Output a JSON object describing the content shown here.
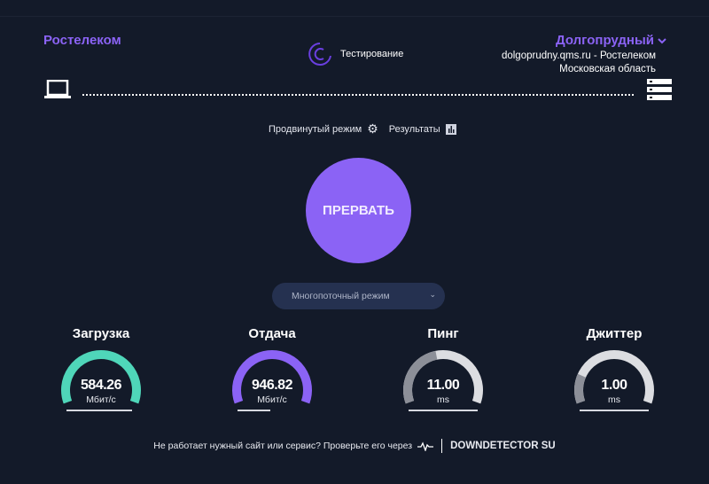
{
  "header": {
    "isp": "Ростелеком",
    "status": "Тестирование",
    "city": "Долгопрудный",
    "server": "dolgoprudny.qms.ru - Ростелеком",
    "region": "Московская область"
  },
  "links": {
    "advanced": "Продвинутый режим",
    "results": "Результаты"
  },
  "stop_button": "ПРЕРВАТЬ",
  "mode_select": {
    "value": "Многопоточный режим"
  },
  "colors": {
    "accent": "#8b63f5",
    "download": "#4fd6b9",
    "upload": "#8b63f5",
    "gauge_dark": "#8c8f98",
    "gauge_light": "#dcdde1",
    "bg": "#131a29"
  },
  "metrics": [
    {
      "title": "Загрузка",
      "value": "584.26",
      "unit": "Мбит/с",
      "fill": 1.0,
      "color": "#4fd6b9",
      "track": "#4fd6b9",
      "progress": 0.95
    },
    {
      "title": "Отдача",
      "value": "946.82",
      "unit": "Мбит/с",
      "fill": 1.0,
      "color": "#8b63f5",
      "track": "#8b63f5",
      "progress": 0.47
    },
    {
      "title": "Пинг",
      "value": "11.00",
      "unit": "ms",
      "fill": 0.45,
      "color": "#8c8f98",
      "track": "#dcdde1",
      "progress": 1.0
    },
    {
      "title": "Джиттер",
      "value": "1.00",
      "unit": "ms",
      "fill": 0.2,
      "color": "#8c8f98",
      "track": "#dcdde1",
      "progress": 1.0
    }
  ],
  "footer": {
    "text": "Не работает нужный сайт или сервис? Проверьте его через",
    "brand": "DOWNDETECTOR SU"
  }
}
